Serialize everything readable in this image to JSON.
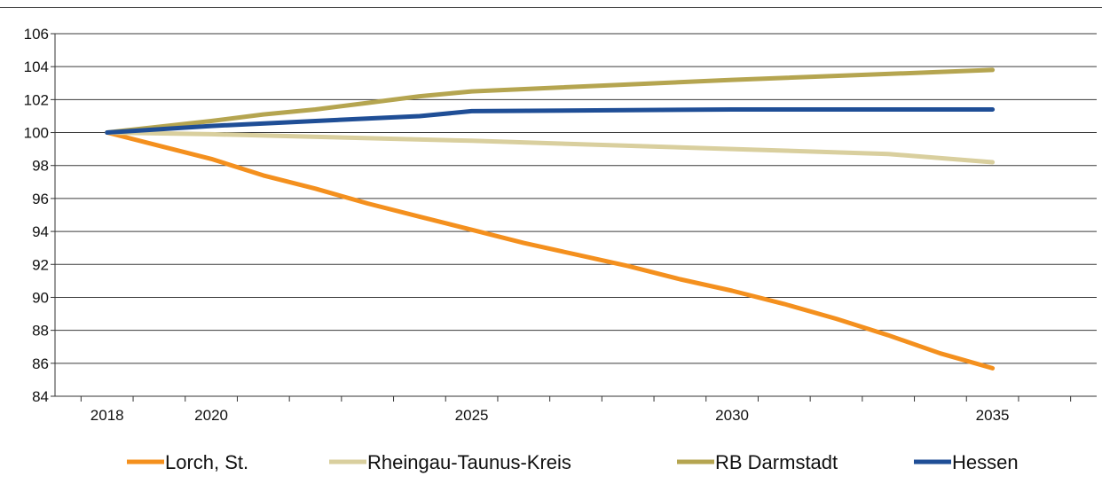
{
  "chart_data": {
    "type": "line",
    "title": "",
    "xlabel": "",
    "ylabel": "",
    "xlim": [
      2017,
      2037
    ],
    "ylim": [
      84,
      106
    ],
    "y_ticks": [
      84,
      86,
      88,
      90,
      92,
      94,
      96,
      98,
      100,
      102,
      104,
      106
    ],
    "x_tick_labels": [
      2018,
      2020,
      2025,
      2030,
      2035
    ],
    "grid": "horizontal",
    "legend_position": "bottom",
    "series": [
      {
        "name": "Lorch, St.",
        "color": "#F4901E",
        "points": [
          [
            2018,
            100
          ],
          [
            2019,
            99.2
          ],
          [
            2020,
            98.4
          ],
          [
            2021,
            97.4
          ],
          [
            2022,
            96.6
          ],
          [
            2023,
            95.7
          ],
          [
            2024,
            94.9
          ],
          [
            2025,
            94.1
          ],
          [
            2026,
            93.3
          ],
          [
            2027,
            92.6
          ],
          [
            2028,
            91.9
          ],
          [
            2029,
            91.1
          ],
          [
            2030,
            90.4
          ],
          [
            2031,
            89.6
          ],
          [
            2032,
            88.7
          ],
          [
            2033,
            87.7
          ],
          [
            2034,
            86.6
          ],
          [
            2035,
            85.7
          ]
        ]
      },
      {
        "name": "Rheingau-Taunus-Kreis",
        "color": "#D9CF9E",
        "points": [
          [
            2018,
            100
          ],
          [
            2020,
            99.9
          ],
          [
            2025,
            99.5
          ],
          [
            2030,
            99.0
          ],
          [
            2033,
            98.7
          ],
          [
            2035,
            98.2
          ]
        ]
      },
      {
        "name": "RB Darmstadt",
        "color": "#B5A550",
        "points": [
          [
            2018,
            100
          ],
          [
            2020,
            100.7
          ],
          [
            2021,
            101.1
          ],
          [
            2022,
            101.4
          ],
          [
            2023,
            101.8
          ],
          [
            2024,
            102.2
          ],
          [
            2025,
            102.5
          ],
          [
            2030,
            103.2
          ],
          [
            2035,
            103.8
          ]
        ]
      },
      {
        "name": "Hessen",
        "color": "#1F4E96",
        "points": [
          [
            2018,
            100
          ],
          [
            2020,
            100.4
          ],
          [
            2022,
            100.7
          ],
          [
            2024,
            101.0
          ],
          [
            2025,
            101.3
          ],
          [
            2030,
            101.4
          ],
          [
            2033,
            101.4
          ],
          [
            2035,
            101.4
          ]
        ]
      }
    ]
  }
}
